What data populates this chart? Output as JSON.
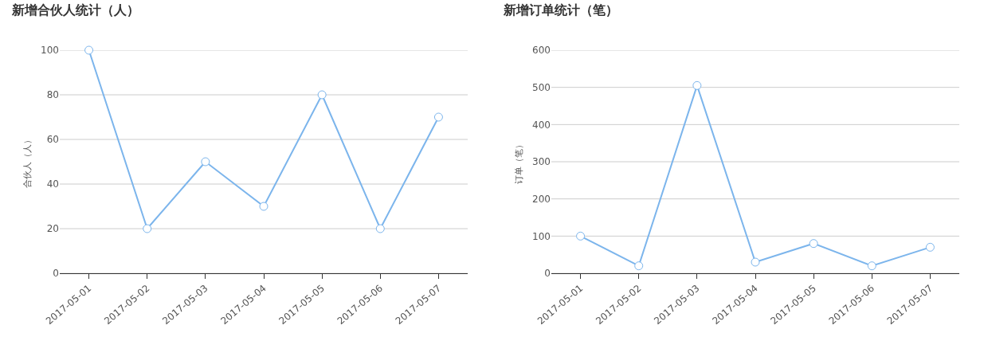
{
  "chart_data": [
    {
      "type": "line",
      "title": "新增合伙人统计（人）",
      "ylabel": "合伙人（人）",
      "categories": [
        "2017-05-01",
        "2017-05-02",
        "2017-05-03",
        "2017-05-04",
        "2017-05-05",
        "2017-05-06",
        "2017-05-07"
      ],
      "series": [
        {
          "color": "#7cb5ec",
          "values": [
            100,
            20,
            50,
            30,
            80,
            20,
            70
          ]
        }
      ],
      "ylim": [
        0,
        100
      ],
      "yticks": [
        0,
        20,
        40,
        60,
        80,
        100
      ],
      "grid": "y",
      "legend": false,
      "marker": "circle",
      "line_style": "solid"
    },
    {
      "type": "line",
      "title": "新增订单统计（笔）",
      "ylabel": "订单（笔）",
      "categories": [
        "2017-05-01",
        "2017-05-02",
        "2017-05-03",
        "2017-05-04",
        "2017-05-05",
        "2017-05-06",
        "2017-05-07"
      ],
      "series": [
        {
          "color": "#7cb5ec",
          "values": [
            100,
            20,
            505,
            30,
            80,
            20,
            70
          ]
        }
      ],
      "ylim": [
        0,
        600
      ],
      "yticks": [
        0,
        100,
        200,
        300,
        400,
        500,
        600
      ],
      "grid": "y",
      "legend": false,
      "marker": "circle",
      "line_style": "solid"
    }
  ]
}
